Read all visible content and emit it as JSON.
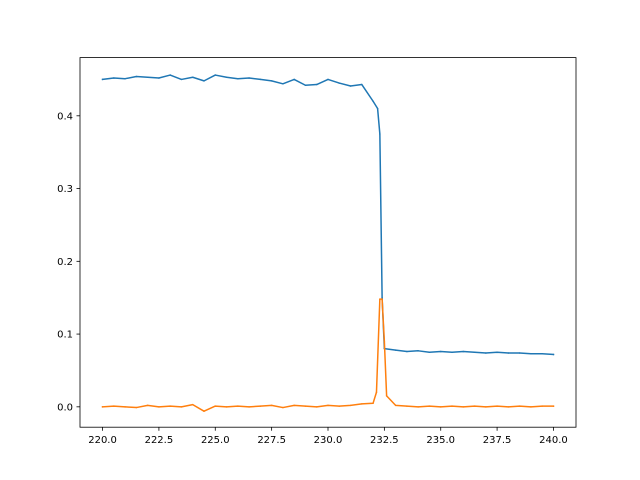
{
  "chart_data": {
    "type": "line",
    "title": "",
    "xlabel": "",
    "ylabel": "",
    "xlim": [
      219.0,
      241.0
    ],
    "ylim": [
      -0.028,
      0.48
    ],
    "xticks": [
      220.0,
      222.5,
      225.0,
      227.5,
      230.0,
      232.5,
      235.0,
      237.5,
      240.0
    ],
    "xtick_labels": [
      "220.0",
      "222.5",
      "225.0",
      "227.5",
      "230.0",
      "232.5",
      "235.0",
      "237.5",
      "240.0"
    ],
    "yticks": [
      0.0,
      0.1,
      0.2,
      0.3,
      0.4
    ],
    "ytick_labels": [
      "0.0",
      "0.1",
      "0.2",
      "0.3",
      "0.4"
    ],
    "grid": false,
    "legend": "none",
    "series": [
      {
        "color": "#1f77b4",
        "x": [
          220.0,
          220.5,
          221.0,
          221.5,
          222.0,
          222.5,
          223.0,
          223.5,
          224.0,
          224.5,
          225.0,
          225.5,
          226.0,
          226.5,
          227.0,
          227.5,
          228.0,
          228.5,
          229.0,
          229.5,
          230.0,
          230.5,
          231.0,
          231.5,
          232.0,
          232.2,
          232.3,
          232.4,
          232.5,
          233.0,
          233.5,
          234.0,
          234.5,
          235.0,
          235.5,
          236.0,
          236.5,
          237.0,
          237.5,
          238.0,
          238.5,
          239.0,
          239.5,
          240.0
        ],
        "y": [
          0.45,
          0.452,
          0.451,
          0.454,
          0.453,
          0.452,
          0.456,
          0.45,
          0.453,
          0.448,
          0.456,
          0.453,
          0.451,
          0.452,
          0.45,
          0.448,
          0.444,
          0.45,
          0.442,
          0.443,
          0.45,
          0.445,
          0.441,
          0.443,
          0.42,
          0.41,
          0.375,
          0.15,
          0.08,
          0.078,
          0.076,
          0.077,
          0.075,
          0.076,
          0.075,
          0.076,
          0.075,
          0.074,
          0.075,
          0.074,
          0.074,
          0.073,
          0.073,
          0.072
        ]
      },
      {
        "color": "#ff7f0e",
        "x": [
          220.0,
          220.5,
          221.0,
          221.5,
          222.0,
          222.5,
          223.0,
          223.5,
          224.0,
          224.5,
          225.0,
          225.5,
          226.0,
          226.5,
          227.0,
          227.5,
          228.0,
          228.5,
          229.0,
          229.5,
          230.0,
          230.5,
          231.0,
          231.5,
          232.0,
          232.15,
          232.3,
          232.4,
          232.5,
          232.6,
          233.0,
          233.5,
          234.0,
          234.5,
          235.0,
          235.5,
          236.0,
          236.5,
          237.0,
          237.5,
          238.0,
          238.5,
          239.0,
          239.5,
          240.0
        ],
        "y": [
          0.0,
          0.001,
          0.0,
          -0.001,
          0.002,
          0.0,
          0.001,
          0.0,
          0.003,
          -0.006,
          0.001,
          0.0,
          0.001,
          0.0,
          0.001,
          0.002,
          -0.001,
          0.002,
          0.001,
          0.0,
          0.002,
          0.001,
          0.002,
          0.004,
          0.005,
          0.02,
          0.148,
          0.148,
          0.09,
          0.015,
          0.002,
          0.001,
          0.0,
          0.001,
          0.0,
          0.001,
          0.0,
          0.001,
          0.0,
          0.001,
          0.0,
          0.001,
          0.0,
          0.001,
          0.001
        ]
      }
    ]
  }
}
